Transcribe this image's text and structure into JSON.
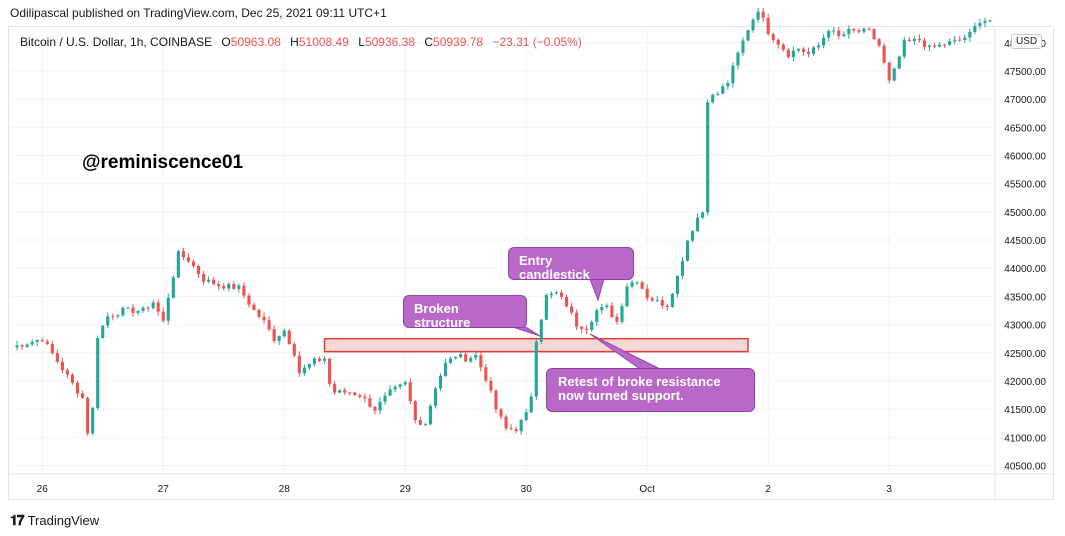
{
  "header": {
    "published": "Odilipascal published on TradingView.com, Dec 25, 2021 09:11 UTC+1"
  },
  "legend": {
    "symbol": "Bitcoin / U.S. Dollar, 1h, COINBASE",
    "o_label": "O",
    "o": "50963.08",
    "h_label": "H",
    "h": "51008.49",
    "l_label": "L",
    "l": "50936.38",
    "c_label": "C",
    "c": "50939.78",
    "change": "−23.31 (−0.05%)"
  },
  "currency_badge": "USD",
  "watermark": "@reminiscence01",
  "annotations": {
    "entry": "Entry candlestick",
    "broken": "Broken structure",
    "retest": "Retest of broke resistance now turned support."
  },
  "footer": {
    "brand": "TradingView"
  },
  "colors": {
    "up": "#26a69a",
    "down": "#ef5350",
    "zone_fill": "#f8d7d7",
    "zone_border": "#e53935",
    "note_bg": "#ba68c8"
  },
  "chart_data": {
    "type": "candlestick",
    "title": "Bitcoin / U.S. Dollar, 1h, COINBASE",
    "xlabel": "",
    "ylabel": "",
    "ylim": [
      40400,
      48800
    ],
    "y_ticks": [
      "48000.00",
      "47500.00",
      "47000.00",
      "46500.00",
      "46000.00",
      "45500.00",
      "45000.00",
      "44500.00",
      "44000.00",
      "43500.00",
      "43000.00",
      "42500.00",
      "42000.00",
      "41500.00",
      "41000.00",
      "40500.00"
    ],
    "y_tick_values": [
      48000,
      47500,
      47000,
      46500,
      46000,
      45500,
      45000,
      44500,
      44000,
      43500,
      43000,
      42500,
      42000,
      41500,
      41000,
      40500
    ],
    "x_ticks": [
      "26",
      "27",
      "28",
      "29",
      "30",
      "Oct",
      "2",
      "3"
    ],
    "x_tick_hours": [
      6,
      30,
      54,
      78,
      102,
      126,
      150,
      174
    ],
    "hours_total": 194,
    "zone": {
      "from_hour": 62,
      "to_hour": 146,
      "low": 42520,
      "high": 42750
    },
    "keypoints": [
      [
        0,
        42600
      ],
      [
        6,
        42750
      ],
      [
        9,
        42350
      ],
      [
        12,
        41950
      ],
      [
        14,
        41700
      ],
      [
        15,
        41100
      ],
      [
        16,
        41500
      ],
      [
        17,
        42800
      ],
      [
        19,
        43150
      ],
      [
        22,
        43250
      ],
      [
        26,
        43250
      ],
      [
        28,
        43400
      ],
      [
        30,
        43050
      ],
      [
        31,
        43500
      ],
      [
        33,
        44250
      ],
      [
        35,
        44150
      ],
      [
        38,
        43800
      ],
      [
        41,
        43700
      ],
      [
        45,
        43650
      ],
      [
        48,
        43250
      ],
      [
        50,
        43050
      ],
      [
        52,
        42750
      ],
      [
        54,
        42900
      ],
      [
        56,
        42500
      ],
      [
        57,
        42150
      ],
      [
        60,
        42350
      ],
      [
        62,
        42400
      ],
      [
        63,
        41950
      ],
      [
        64,
        41800
      ],
      [
        67,
        41800
      ],
      [
        69,
        41750
      ],
      [
        72,
        41500
      ],
      [
        75,
        41800
      ],
      [
        78,
        41950
      ],
      [
        80,
        41300
      ],
      [
        82,
        41250
      ],
      [
        84,
        41900
      ],
      [
        86,
        42300
      ],
      [
        88,
        42450
      ],
      [
        90,
        42400
      ],
      [
        92,
        42450
      ],
      [
        94,
        42050
      ],
      [
        96,
        41500
      ],
      [
        98,
        41150
      ],
      [
        100,
        41150
      ],
      [
        102,
        41400
      ],
      [
        103,
        41750
      ],
      [
        104,
        42750
      ],
      [
        106,
        43500
      ],
      [
        108,
        43550
      ],
      [
        110,
        43350
      ],
      [
        112,
        43000
      ],
      [
        114,
        42950
      ],
      [
        116,
        43250
      ],
      [
        118,
        43300
      ],
      [
        120,
        43050
      ],
      [
        122,
        43700
      ],
      [
        124,
        43800
      ],
      [
        126,
        43500
      ],
      [
        128,
        43400
      ],
      [
        130,
        43350
      ],
      [
        132,
        43850
      ],
      [
        134,
        44500
      ],
      [
        136,
        44900
      ],
      [
        137,
        45000
      ],
      [
        138,
        47000
      ],
      [
        140,
        47100
      ],
      [
        142,
        47300
      ],
      [
        144,
        47800
      ],
      [
        146,
        48250
      ],
      [
        148,
        48600
      ],
      [
        150,
        48200
      ],
      [
        152,
        48000
      ],
      [
        154,
        47800
      ],
      [
        156,
        47900
      ],
      [
        158,
        47800
      ],
      [
        160,
        47950
      ],
      [
        162,
        48250
      ],
      [
        164,
        48100
      ],
      [
        166,
        48200
      ],
      [
        170,
        48200
      ],
      [
        172,
        47950
      ],
      [
        174,
        47300
      ],
      [
        175,
        47500
      ],
      [
        177,
        48000
      ],
      [
        180,
        48050
      ],
      [
        182,
        47900
      ],
      [
        186,
        48000
      ],
      [
        188,
        48050
      ],
      [
        190,
        48150
      ],
      [
        192,
        48400
      ]
    ],
    "note": "1-hour BTC/USD candles from about Sep 25 to Oct 3, 2021; series values are approximate closes read from the chart at hourly positions."
  }
}
